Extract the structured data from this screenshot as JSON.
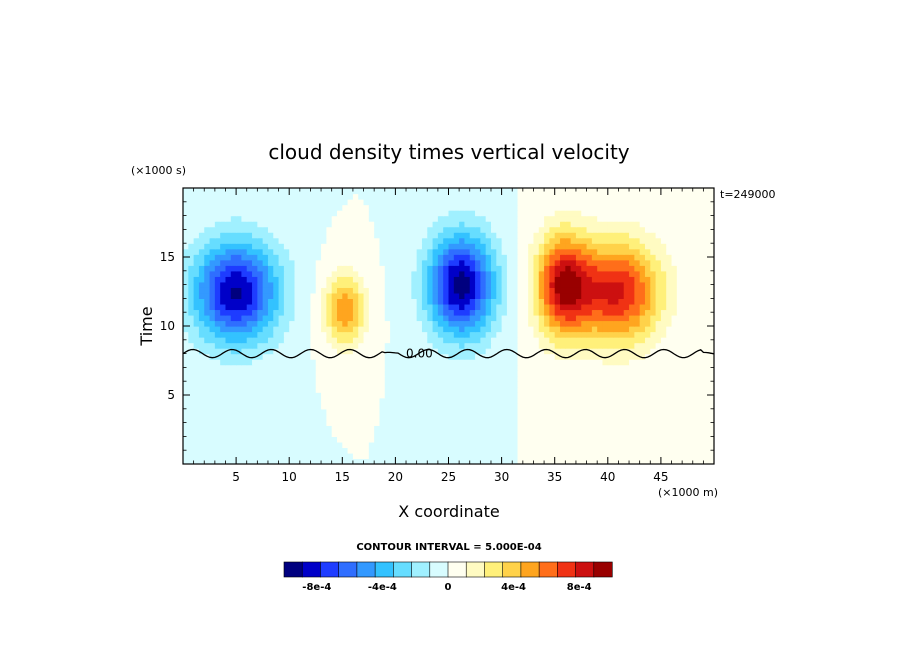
{
  "chart_data": {
    "type": "heatmap",
    "title": "cloud density times vertical velocity",
    "xlabel": "X coordinate",
    "ylabel": "Time",
    "x_units": "(×1000 m)",
    "y_units": "(×1000 s)",
    "time_stamp": "t=249000",
    "xlim": [
      0,
      50
    ],
    "ylim": [
      0,
      20
    ],
    "x_ticks": [
      5,
      10,
      15,
      20,
      25,
      30,
      35,
      40,
      45
    ],
    "y_ticks": [
      5,
      10,
      15
    ],
    "contour_label": "0.00",
    "cells": [
      {
        "cx": 5.0,
        "cy": 12.5,
        "sx": 2.8,
        "sy": 2.6,
        "amp": -0.0009
      },
      {
        "cx": 15.2,
        "cy": 11.2,
        "sx": 1.3,
        "sy": 1.8,
        "amp": 0.00055
      },
      {
        "cx": 26.2,
        "cy": 13.0,
        "sx": 2.2,
        "sy": 2.6,
        "amp": -0.00095
      },
      {
        "cx": 35.8,
        "cy": 13.0,
        "sx": 1.8,
        "sy": 2.6,
        "amp": 0.00085
      },
      {
        "cx": 41.0,
        "cy": 12.5,
        "sx": 2.8,
        "sy": 2.6,
        "amp": 0.0008
      }
    ],
    "colorbar": {
      "title": "CONTOUR INTERVAL = 5.000E-04",
      "tick_labels": [
        "-8e-4",
        "-4e-4",
        "0",
        "4e-4",
        "8e-4"
      ],
      "tick_values": [
        -0.0008,
        -0.0004,
        0,
        0.0004,
        0.0008
      ],
      "range": [
        -0.001,
        0.001
      ],
      "colors": [
        "#00007f",
        "#0000c8",
        "#1e3cff",
        "#2f6eff",
        "#3399ff",
        "#33c2ff",
        "#66ddff",
        "#a0f0ff",
        "#d8fcff",
        "#fffff0",
        "#fffbc2",
        "#fff07a",
        "#ffd24a",
        "#ffa51f",
        "#ff6e1a",
        "#f03214",
        "#cc1010",
        "#990000"
      ]
    }
  }
}
